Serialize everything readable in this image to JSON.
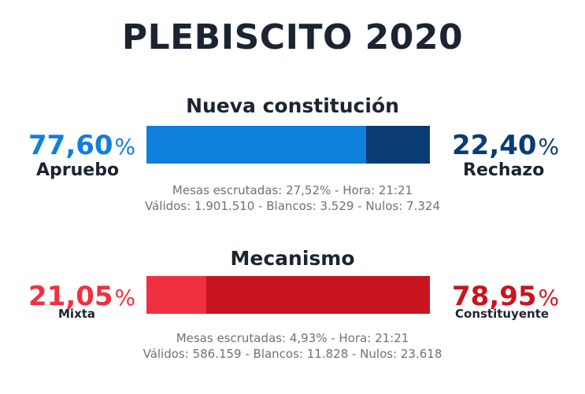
{
  "title": "PLEBISCITO 2020",
  "colors": {
    "apruebo": "#0f7fdc",
    "rechazo": "#0a3c74",
    "mixta": "#f03040",
    "constituyente": "#c8141e"
  },
  "constitucion": {
    "heading": "Nueva constitución",
    "left": {
      "value": "77,60",
      "symbol": "%",
      "label": "Apruebo"
    },
    "right": {
      "value": "22,40",
      "symbol": "%",
      "label": "Rechazo"
    },
    "stats_line1": "Mesas escrutadas: 27,52% - Hora: 21:21",
    "stats_line2": "Válidos: 1.901.510 - Blancos: 3.529 - Nulos: 7.324"
  },
  "mecanismo": {
    "heading": "Mecanismo",
    "left": {
      "value": "21,05",
      "symbol": "%",
      "label": "Mixta"
    },
    "right": {
      "value": "78,95",
      "symbol": "%",
      "label": "Constituyente"
    },
    "stats_line1": "Mesas escrutadas: 4,93% - Hora: 21:21",
    "stats_line2": "Válidos: 586.159 - Blancos: 11.828 - Nulos: 23.618"
  },
  "chart_data": [
    {
      "type": "bar",
      "title": "Nueva constitución",
      "categories": [
        "Apruebo",
        "Rechazo"
      ],
      "values": [
        77.6,
        22.4
      ],
      "unit": "%"
    },
    {
      "type": "bar",
      "title": "Mecanismo",
      "categories": [
        "Mixta",
        "Constituyente"
      ],
      "values": [
        21.05,
        78.95
      ],
      "unit": "%"
    }
  ]
}
